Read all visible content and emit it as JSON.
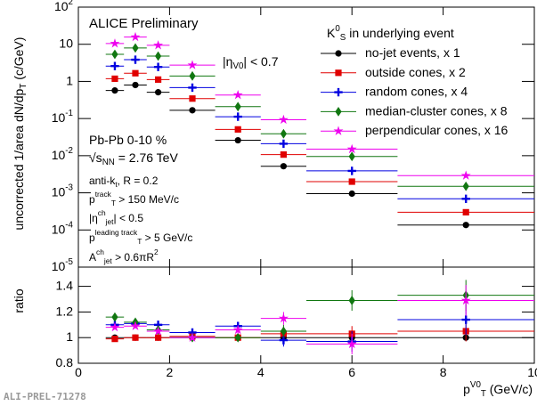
{
  "chart_data": [
    {
      "type": "scatter",
      "title": "ALICE Preliminary",
      "y_label": "uncorrected 1/area dN/dp_{T} (c/GeV)",
      "legend_title": "K^{0}_{S} in underlying event",
      "legend": "upper right",
      "annotations": [
        "|η_{V0}| < 0.7",
        "Pb-Pb 0-10 %",
        "√s_{NN} = 2.76 TeV",
        "anti-k_{t}, R = 0.2",
        "p^{track}_{T} > 150 MeV/c",
        "|η^{ch}_{jet}| < 0.5",
        "p^{leading track}_{T} > 5 GeV/c",
        "A^{ch}_{jet} > 0.6πR^{2}"
      ],
      "log_y": true,
      "bins": [
        0.6,
        1.0,
        1.5,
        2.0,
        3.0,
        4.0,
        5.0,
        7.0,
        10.0
      ],
      "xlim": [
        0,
        10
      ],
      "xticks": [
        0,
        2,
        4,
        6,
        8,
        10
      ],
      "ylim": [
        1e-05,
        100
      ],
      "yticks": [
        {
          "value": 1e-05,
          "label": "10^{-5}"
        },
        {
          "value": 0.0001,
          "label": "10^{-4}"
        },
        {
          "value": 0.001,
          "label": "10^{-3}"
        },
        {
          "value": 0.01,
          "label": "10^{-2}"
        },
        {
          "value": 0.1,
          "label": "10^{-1}"
        },
        1,
        10,
        {
          "value": 100,
          "label": "10^{2}"
        }
      ],
      "series": [
        {
          "name": "no-jet events, x 1",
          "color": "#000000",
          "marker": "circle",
          "values": [
            0.57,
            0.8,
            0.51,
            0.167,
            0.026,
            0.0052,
            0.00095,
            0.000136
          ]
        },
        {
          "name": "outside cones, x 2",
          "color": "#e00000",
          "marker": "square",
          "values": [
            1.18,
            1.66,
            1.12,
            0.345,
            0.051,
            0.0107,
            0.002,
            0.0003
          ]
        },
        {
          "name": "random cones, x 4",
          "color": "#0000e0",
          "marker": "plus",
          "values": [
            2.59,
            3.84,
            2.45,
            0.68,
            0.112,
            0.021,
            0.0039,
            0.00069
          ]
        },
        {
          "name": "median-cluster cones, x 8",
          "color": "#117711",
          "marker": "diamond",
          "values": [
            5.37,
            7.96,
            4.8,
            1.4,
            0.209,
            0.039,
            0.0095,
            0.0015
          ]
        },
        {
          "name": "perpendicular cones, x 16",
          "color": "#ee00ee",
          "marker": "star",
          "values": [
            10.5,
            15.6,
            9.4,
            2.74,
            0.43,
            0.093,
            0.015,
            0.0029
          ]
        }
      ]
    },
    {
      "type": "scatter",
      "y_label": "ratio",
      "x_label": "p^{V0}_{T} (GeV/c)",
      "bins": [
        0.6,
        1.0,
        1.5,
        2.0,
        3.0,
        4.0,
        5.0,
        7.0,
        10.0
      ],
      "xlim": [
        0,
        10
      ],
      "xticks": [
        0,
        2,
        4,
        6,
        8,
        10
      ],
      "ylim": [
        0.8,
        1.55
      ],
      "yticks": [
        0.8,
        1,
        1.2,
        1.4
      ],
      "series": [
        {
          "color": "#000000",
          "marker": "circle",
          "values": [
            1,
            1,
            1,
            1,
            1,
            1,
            1,
            1
          ]
        },
        {
          "color": "#e00000",
          "marker": "square",
          "values": [
            0.99,
            1.0,
            1.0,
            1.01,
            1.0,
            1.03,
            1.03,
            1.05
          ],
          "errors": [
            0.01,
            0.01,
            0.01,
            0.01,
            0.02,
            0.04,
            0.06,
            0.08
          ]
        },
        {
          "color": "#0000e0",
          "marker": "plus",
          "values": [
            1.1,
            1.11,
            1.1,
            1.04,
            1.09,
            0.98,
            0.97,
            1.14
          ],
          "errors": [
            0.01,
            0.01,
            0.01,
            0.02,
            0.03,
            0.05,
            0.08,
            0.12
          ]
        },
        {
          "color": "#117711",
          "marker": "diamond",
          "values": [
            1.16,
            1.12,
            1.06,
            1.0,
            1.0,
            1.05,
            1.29,
            1.33
          ],
          "errors": [
            0.01,
            0.01,
            0.01,
            0.02,
            0.03,
            0.05,
            0.08,
            0.12
          ]
        },
        {
          "color": "#ee00ee",
          "marker": "star",
          "values": [
            1.08,
            1.09,
            1.05,
            1.0,
            1.06,
            1.15,
            0.95,
            1.29
          ],
          "errors": [
            0.01,
            0.01,
            0.01,
            0.02,
            0.03,
            0.05,
            0.08,
            0.12
          ]
        }
      ]
    }
  ],
  "footer": "ALI-PREL-71278"
}
